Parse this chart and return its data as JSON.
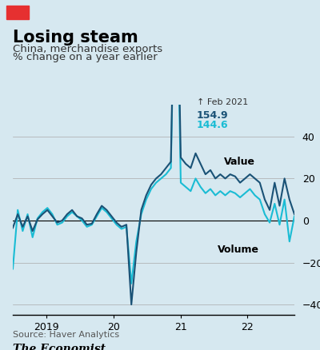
{
  "title": "Losing steam",
  "subtitle1": "China, merchandise exports",
  "subtitle2": "% change on a year earlier",
  "source": "Source: Haver Analytics",
  "footer": "The Economist",
  "background_color": "#d6e8f0",
  "plot_bg_color": "#d6e8f0",
  "value_color": "#1a5276",
  "volume_color": "#1abcd4",
  "annotation_arrow": "↑ Feb 2021",
  "annotation_value": "154.9",
  "annotation_volume": "144.6",
  "ylim": [
    -45,
    55
  ],
  "yticks": [
    -40,
    -20,
    0,
    20,
    40
  ],
  "value_data": [
    -3.5,
    3.0,
    -3.0,
    2.0,
    -5.0,
    0.5,
    3.0,
    5.0,
    2.0,
    -1.0,
    0.0,
    3.0,
    5.0,
    2.0,
    1.0,
    -2.0,
    -1.5,
    3.0,
    7.0,
    5.0,
    2.0,
    -1.0,
    -3.0,
    -2.0,
    -40.0,
    -15.0,
    5.0,
    12.0,
    17.0,
    20.0,
    22.0,
    25.0,
    28.0,
    154.9,
    30.0,
    27.0,
    25.0,
    32.0,
    27.0,
    22.0,
    24.0,
    20.0,
    22.0,
    20.0,
    22.0,
    21.0,
    18.0,
    20.0,
    22.0,
    20.0,
    18.0,
    10.0,
    5.0,
    18.0,
    7.0,
    20.0,
    10.0,
    3.0
  ],
  "volume_data": [
    -23.0,
    5.0,
    -5.0,
    3.0,
    -8.0,
    1.0,
    4.0,
    6.0,
    3.0,
    -2.0,
    -1.0,
    2.0,
    4.0,
    2.0,
    0.0,
    -3.0,
    -2.0,
    2.0,
    6.0,
    4.0,
    1.0,
    -2.0,
    -4.0,
    -3.0,
    -30.0,
    -10.0,
    3.0,
    10.0,
    15.0,
    18.0,
    20.0,
    22.0,
    25.0,
    144.6,
    18.0,
    16.0,
    14.0,
    20.0,
    16.0,
    13.0,
    15.0,
    12.0,
    14.0,
    12.0,
    14.0,
    13.0,
    11.0,
    13.0,
    15.0,
    12.0,
    10.0,
    3.0,
    -1.0,
    8.0,
    -2.0,
    10.0,
    -10.0,
    2.0
  ],
  "n_points": 58,
  "start_year": 2018.5,
  "end_year": 2022.7,
  "xtick_positions": [
    2019.0,
    2020.0,
    2021.0,
    2022.0
  ],
  "xtick_labels": [
    "2019",
    "20",
    "21",
    "22"
  ]
}
